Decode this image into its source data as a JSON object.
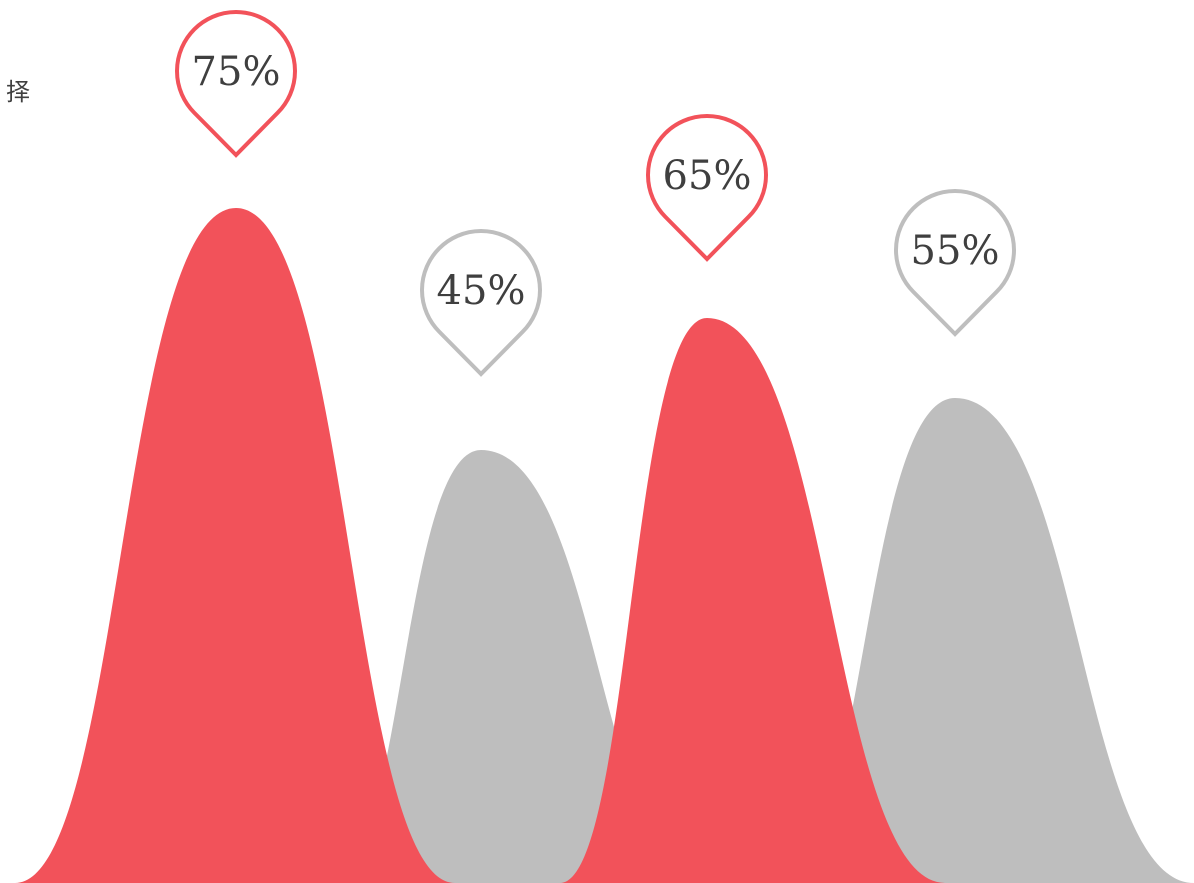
{
  "corner_text": "择",
  "colors": {
    "red": "#f2525a",
    "gray": "#bebebe",
    "label_text": "#3f3f3f"
  },
  "chart_data": {
    "type": "area",
    "x_range": [
      0,
      1194
    ],
    "ylim": [
      0,
      100
    ],
    "series": [
      {
        "value": 75,
        "label": "75%",
        "color": "red"
      },
      {
        "value": 45,
        "label": "45%",
        "color": "gray"
      },
      {
        "value": 65,
        "label": "65%",
        "color": "red"
      },
      {
        "value": 55,
        "label": "55%",
        "color": "gray"
      }
    ]
  }
}
